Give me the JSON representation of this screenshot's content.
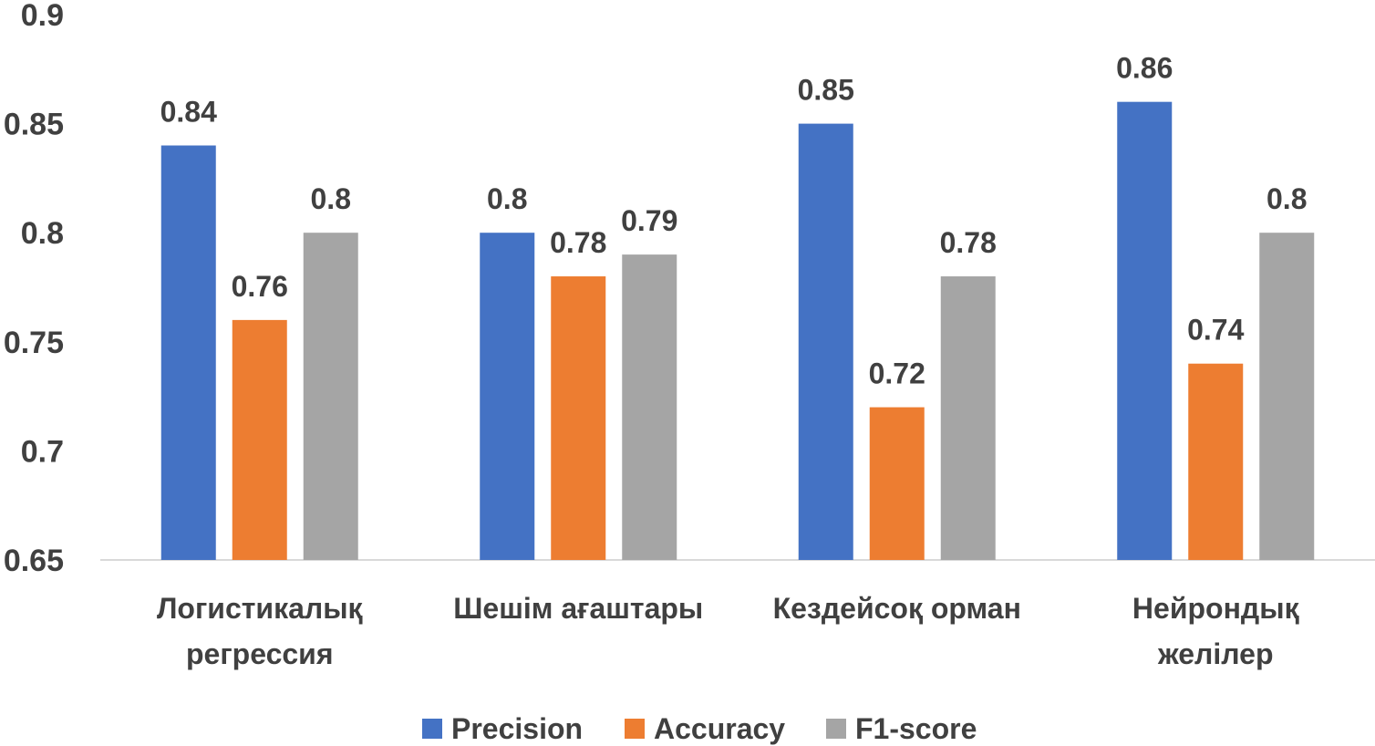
{
  "chart_data": {
    "type": "bar",
    "categories": [
      [
        "Логистикалық",
        "регрессия"
      ],
      [
        "Шешім ағаштары"
      ],
      [
        "Кездейсоқ орман"
      ],
      [
        "Нейрондық",
        "желілер"
      ]
    ],
    "series": [
      {
        "name": "Precision",
        "color": "#4472C4",
        "values": [
          0.84,
          0.8,
          0.85,
          0.86
        ]
      },
      {
        "name": "Accuracy",
        "color": "#ED7D31",
        "values": [
          0.76,
          0.78,
          0.72,
          0.74
        ]
      },
      {
        "name": "F1-score",
        "color": "#A5A5A5",
        "values": [
          0.8,
          0.79,
          0.78,
          0.8
        ]
      }
    ],
    "yticks": [
      "0.65",
      "0.7",
      "0.75",
      "0.8",
      "0.85",
      "0.9"
    ],
    "ylim": [
      0.65,
      0.9
    ],
    "grid": false,
    "legend": "bottom",
    "data_labels": true
  }
}
